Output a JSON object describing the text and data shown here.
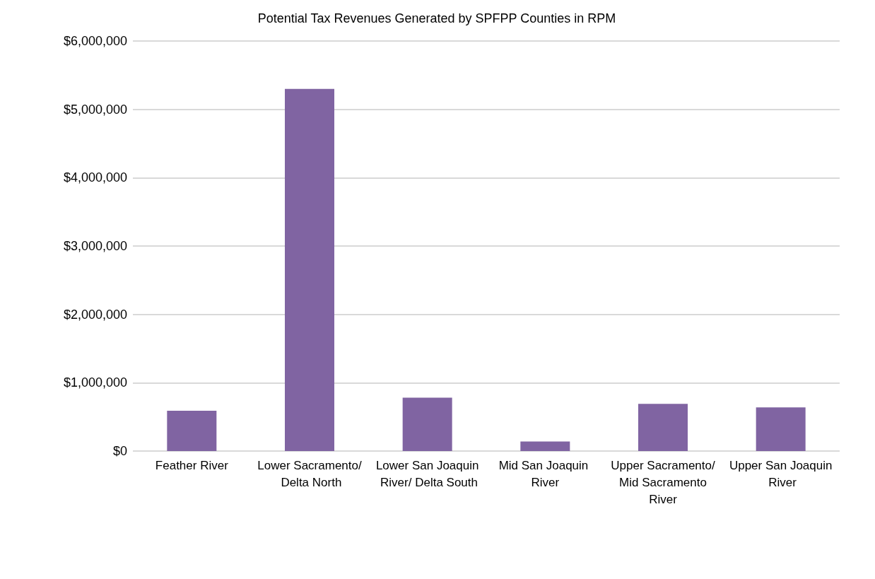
{
  "chart_data": {
    "type": "bar",
    "title": "Potential Tax Revenues Generated by SPFPP Counties in RPM",
    "categories": [
      "Feather River",
      "Lower Sacramento/ Delta North",
      "Lower San Joaquin River/ Delta South",
      "Mid San Joaquin River",
      "Upper Sacramento/ Mid Sacramento River",
      "Upper San Joaquin River"
    ],
    "values": [
      590000,
      5300000,
      780000,
      140000,
      690000,
      640000
    ],
    "color": "#8064a2",
    "ylim": [
      0,
      6000000
    ],
    "yticks": [
      {
        "value": 0,
        "label": "$0"
      },
      {
        "value": 1000000,
        "label": "$1,000,000"
      },
      {
        "value": 2000000,
        "label": "$2,000,000"
      },
      {
        "value": 3000000,
        "label": "$3,000,000"
      },
      {
        "value": 4000000,
        "label": "$4,000,000"
      },
      {
        "value": 5000000,
        "label": "$5,000,000"
      },
      {
        "value": 6000000,
        "label": "$6,000,000"
      }
    ],
    "grid": "y"
  }
}
